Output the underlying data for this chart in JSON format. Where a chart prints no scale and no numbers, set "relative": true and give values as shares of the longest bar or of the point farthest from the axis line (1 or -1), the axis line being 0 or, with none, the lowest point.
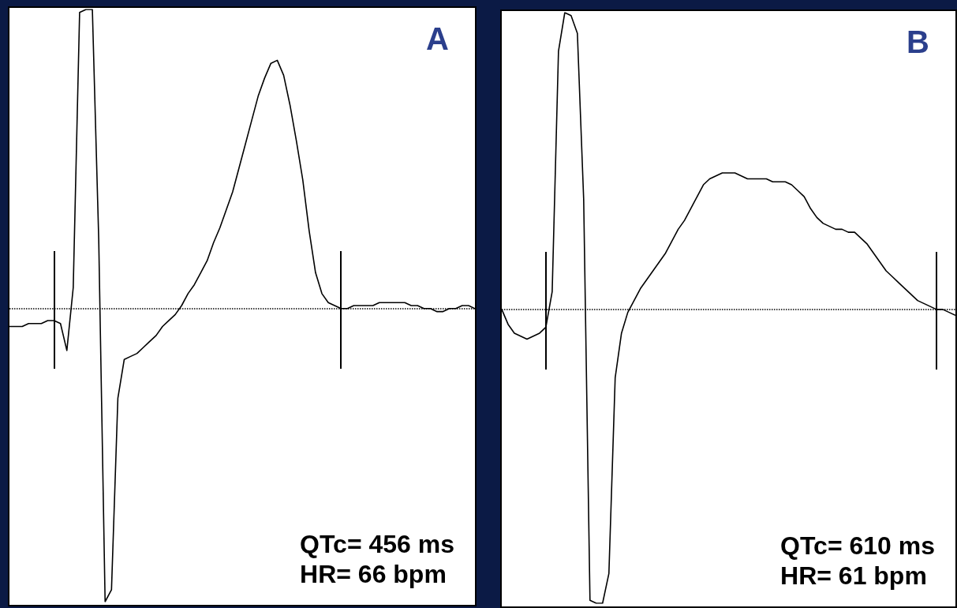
{
  "chart_data": [
    {
      "type": "line",
      "title": "A",
      "relative": true,
      "color": "#000000",
      "categories": [
        null,
        null,
        null,
        null,
        null,
        null,
        null,
        null,
        null,
        null,
        null,
        null,
        null,
        null,
        null,
        null,
        null,
        null,
        null,
        null,
        null,
        null,
        null,
        null,
        null,
        null,
        null,
        null,
        null,
        null,
        null,
        null,
        null,
        null,
        null,
        null,
        null,
        null,
        null,
        null,
        null,
        null,
        null,
        null,
        null,
        null,
        null,
        null,
        null,
        null,
        null,
        null,
        null,
        null,
        null,
        null,
        null,
        null,
        null,
        null,
        null,
        null,
        null,
        null,
        null,
        null,
        null,
        null,
        null,
        null,
        null,
        null,
        null,
        null
      ],
      "values": [
        -0.06,
        -0.06,
        -0.06,
        -0.05,
        -0.05,
        -0.05,
        -0.04,
        -0.04,
        -0.05,
        -0.14,
        0.07,
        0.99,
        1,
        1,
        0.23,
        -0.98,
        -0.94,
        -0.3,
        -0.17,
        -0.16,
        -0.15,
        -0.13,
        -0.11,
        -0.09,
        -0.06,
        -0.04,
        -0.02,
        0.01,
        0.05,
        0.08,
        0.12,
        0.16,
        0.22,
        0.27,
        0.33,
        0.39,
        0.47,
        0.55,
        0.63,
        0.71,
        0.77,
        0.82,
        0.83,
        0.78,
        0.68,
        0.56,
        0.43,
        0.26,
        0.12,
        0.05,
        0.02,
        0.01,
        0,
        0,
        0.01,
        0.01,
        0.01,
        0.01,
        0.02,
        0.02,
        0.02,
        0.02,
        0.02,
        0.01,
        0.01,
        0,
        0,
        -0.01,
        -0.01,
        0,
        0,
        0.01,
        0.01,
        0
      ],
      "ref_lines": [
        {
          "axis": "y",
          "value": 0,
          "line_style": "dotted"
        }
      ],
      "annotations": [
        "QTc= 456 ms",
        "HR= 66 bpm"
      ]
    },
    {
      "type": "line",
      "title": "B",
      "relative": true,
      "color": "#000000",
      "categories": [
        null,
        null,
        null,
        null,
        null,
        null,
        null,
        null,
        null,
        null,
        null,
        null,
        null,
        null,
        null,
        null,
        null,
        null,
        null,
        null,
        null,
        null,
        null,
        null,
        null,
        null,
        null,
        null,
        null,
        null,
        null,
        null,
        null,
        null,
        null,
        null,
        null,
        null,
        null,
        null,
        null,
        null,
        null,
        null,
        null,
        null,
        null,
        null,
        null,
        null,
        null,
        null,
        null,
        null,
        null,
        null,
        null,
        null,
        null,
        null,
        null,
        null,
        null,
        null,
        null,
        null,
        null,
        null,
        null,
        null,
        null,
        null,
        null
      ],
      "values": [
        0,
        -0.05,
        -0.08,
        -0.09,
        -0.1,
        -0.09,
        -0.08,
        -0.06,
        0.06,
        0.87,
        1,
        0.99,
        0.93,
        0.37,
        -0.98,
        -0.99,
        -0.99,
        -0.89,
        -0.23,
        -0.08,
        -0.01,
        0.03,
        0.07,
        0.1,
        0.13,
        0.16,
        0.19,
        0.23,
        0.27,
        0.3,
        0.34,
        0.38,
        0.42,
        0.44,
        0.45,
        0.46,
        0.46,
        0.46,
        0.45,
        0.44,
        0.44,
        0.44,
        0.44,
        0.43,
        0.43,
        0.43,
        0.42,
        0.4,
        0.38,
        0.34,
        0.31,
        0.29,
        0.28,
        0.27,
        0.27,
        0.26,
        0.26,
        0.24,
        0.22,
        0.19,
        0.16,
        0.13,
        0.11,
        0.09,
        0.07,
        0.05,
        0.03,
        0.02,
        0.01,
        0,
        0,
        -0.01,
        -0.02
      ],
      "ref_lines": [
        {
          "axis": "y",
          "value": 0,
          "line_style": "dotted"
        }
      ],
      "annotations": [
        "QTc= 610 ms",
        "HR= 61 bpm"
      ]
    }
  ]
}
